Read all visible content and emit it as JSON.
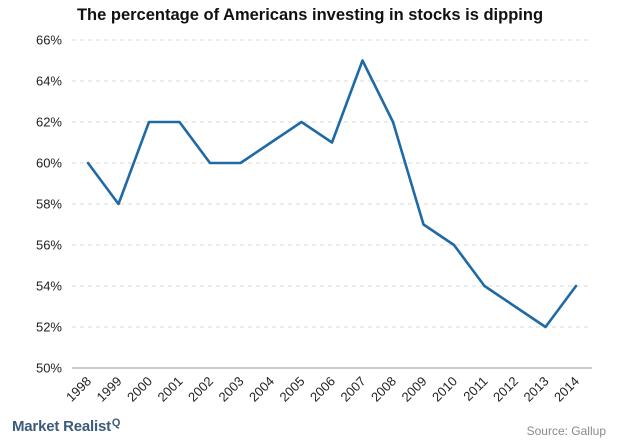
{
  "chart_data": {
    "type": "line",
    "title": "The percentage of Americans investing in stocks is dipping",
    "xlabel": "",
    "ylabel": "",
    "x": [
      "1998",
      "1999",
      "2000",
      "2001",
      "2002",
      "2003",
      "2004",
      "2005",
      "2006",
      "2007",
      "2008",
      "2009",
      "2010",
      "2011",
      "2012",
      "2013",
      "2014"
    ],
    "series": [
      {
        "values": [
          60,
          58,
          62,
          62,
          60,
          60,
          61,
          62,
          61,
          65,
          62,
          57,
          56,
          54,
          53,
          52,
          54
        ]
      }
    ],
    "ylim": [
      50,
      66
    ],
    "yticks": [
      50,
      52,
      54,
      56,
      58,
      60,
      62,
      64,
      66
    ],
    "ytick_suffix": "%",
    "grid": true,
    "line_color": "#1f6aa5"
  },
  "footer": {
    "brand": "Market Realist",
    "brand_mark": "Q",
    "source": "Source: Gallup"
  }
}
